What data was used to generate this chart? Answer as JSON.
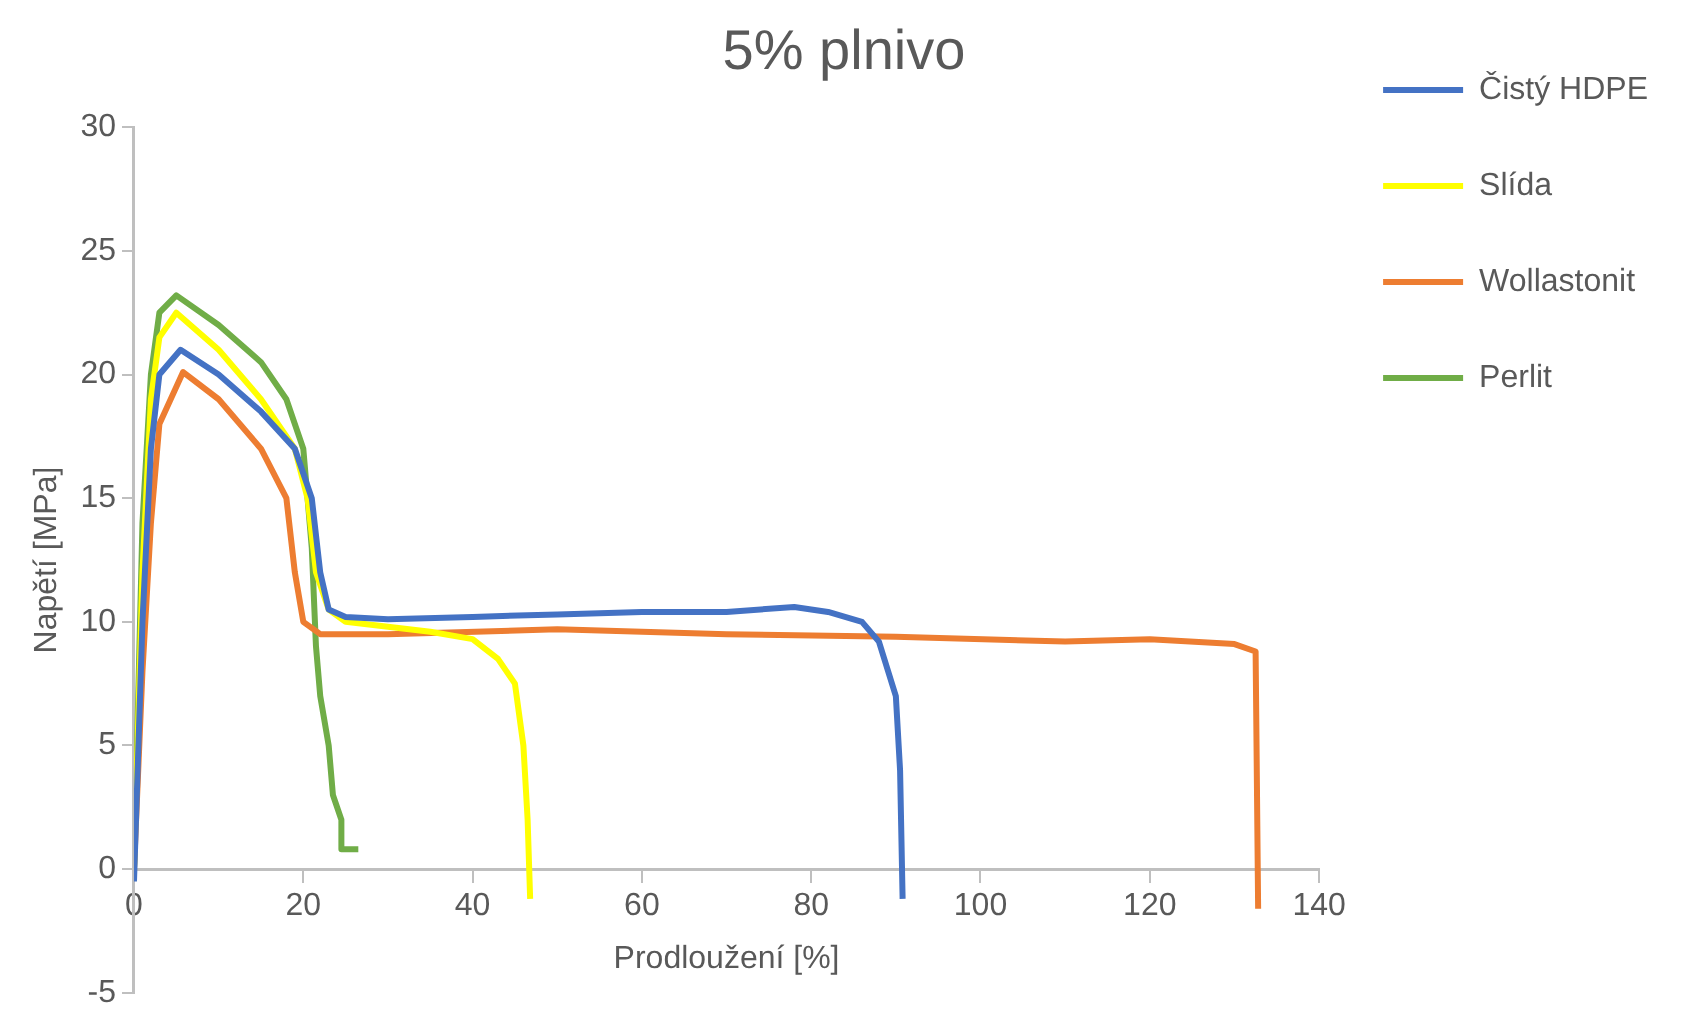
{
  "chart_data": {
    "type": "line",
    "title": "5% plnivo",
    "xlabel": "Prodloužení [%]",
    "ylabel": "Napětí [MPa]",
    "xlim": [
      0,
      140
    ],
    "xticks": [
      0,
      20,
      40,
      60,
      80,
      100,
      120,
      140
    ],
    "ylim": [
      -5,
      30
    ],
    "yticks": [
      -5,
      0,
      5,
      10,
      15,
      20,
      25,
      30
    ],
    "grid": false,
    "legend": "right",
    "marker": "none",
    "line_style": "solid",
    "series": [
      {
        "name": "Čistý HDPE",
        "color": "#4472c4",
        "x": [
          0,
          1,
          2,
          3,
          5.5,
          10,
          15,
          19,
          21,
          22,
          23,
          25,
          30,
          40,
          50,
          60,
          70,
          78,
          82,
          86,
          88,
          90,
          90.5,
          90.8
        ],
        "values": [
          -0.5,
          10,
          17,
          20,
          21,
          20,
          18.5,
          17,
          15,
          12,
          10.5,
          10.2,
          10.1,
          10.2,
          10.3,
          10.4,
          10.4,
          10.6,
          10.4,
          10,
          9.2,
          7,
          4,
          -1.2
        ]
      },
      {
        "name": "Slída",
        "color": "#ffff00",
        "x": [
          0,
          1,
          2,
          3,
          5,
          10,
          15,
          19,
          20.5,
          21.5,
          23,
          25,
          30,
          35,
          40,
          43,
          45,
          46,
          46.5,
          46.8
        ],
        "values": [
          0,
          12,
          19,
          21.5,
          22.5,
          21,
          19,
          17,
          15,
          12,
          10.5,
          10,
          9.8,
          9.6,
          9.3,
          8.5,
          7.5,
          5,
          2,
          -1.2
        ]
      },
      {
        "name": "Wollastonit",
        "color": "#ed7d31",
        "x": [
          0,
          1,
          2,
          3,
          5.8,
          10,
          15,
          18,
          19,
          20,
          22,
          30,
          50,
          70,
          90,
          110,
          120,
          130,
          132.5,
          132.8
        ],
        "values": [
          0,
          8,
          14,
          18,
          20.1,
          19,
          17,
          15,
          12,
          10,
          9.5,
          9.5,
          9.7,
          9.5,
          9.4,
          9.2,
          9.3,
          9.1,
          8.8,
          -1.6
        ]
      },
      {
        "name": "Perlit",
        "color": "#70ad47",
        "x": [
          0,
          1,
          2,
          3,
          5,
          10,
          15,
          18,
          20,
          21,
          21.5,
          22,
          23,
          23.5,
          24.5,
          24.5,
          26.5
        ],
        "values": [
          0,
          14,
          20,
          22.5,
          23.2,
          22,
          20.5,
          19,
          17,
          13,
          9,
          7,
          5,
          3,
          2,
          0.8,
          0.8
        ]
      }
    ]
  }
}
